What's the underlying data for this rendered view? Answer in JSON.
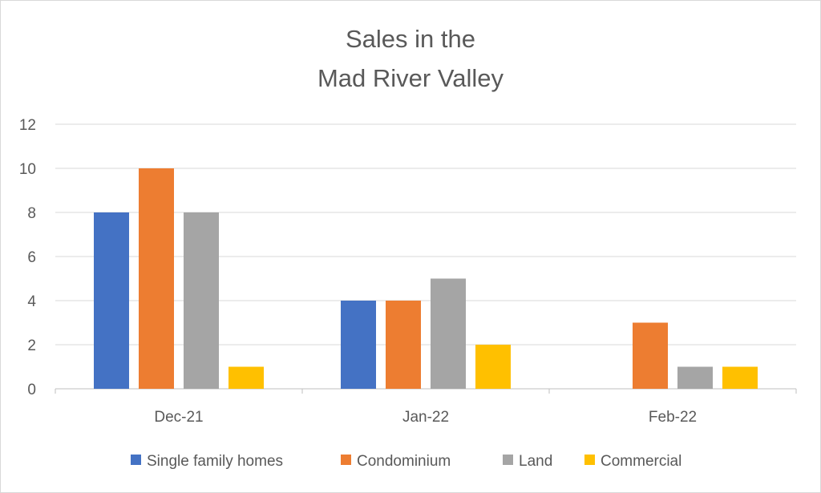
{
  "chart_data": {
    "type": "bar",
    "title_lines": [
      "Sales in the",
      "Mad River Valley"
    ],
    "categories": [
      "Dec-21",
      "Jan-22",
      "Feb-22"
    ],
    "series": [
      {
        "name": "Single family homes",
        "values": [
          8,
          4,
          0
        ],
        "color": "#4472C4"
      },
      {
        "name": "Condominium",
        "values": [
          10,
          4,
          3
        ],
        "color": "#ED7D31"
      },
      {
        "name": "Land",
        "values": [
          8,
          5,
          1
        ],
        "color": "#A5A5A5"
      },
      {
        "name": "Commercial",
        "values": [
          1,
          2,
          1
        ],
        "color": "#FFC000"
      }
    ],
    "yticks": [
      "0",
      "2",
      "4",
      "6",
      "8",
      "10",
      "12"
    ],
    "ylim": [
      0,
      12
    ],
    "xlabel": "",
    "ylabel": "",
    "grid": true,
    "legend": "bottom"
  }
}
